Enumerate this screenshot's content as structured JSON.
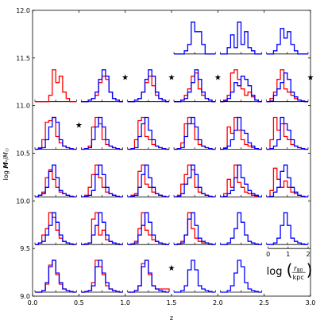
{
  "chart_data": {
    "type": "grid of step histograms",
    "xlabel": "z",
    "ylabel": "log M*/M☉",
    "xlim": [
      0.0,
      3.0
    ],
    "ylim": [
      9.0,
      12.0
    ],
    "x_ticks": [
      "0.0",
      "0.5",
      "1.0",
      "1.5",
      "2.0",
      "2.5",
      "3.0"
    ],
    "y_ticks": [
      "9.0",
      "9.5",
      "10.0",
      "10.5",
      "11.0",
      "11.5",
      "12.0"
    ],
    "series_colors": {
      "red": "#ff0000",
      "blue": "#0000ff"
    },
    "key_panel": {
      "x_ticks": [
        "0",
        "1",
        "2"
      ],
      "label_text": "log(r80/kpc)"
    },
    "panels": [
      {
        "z": [
          0.0,
          0.5
        ],
        "logM": [
          9.0,
          9.5
        ],
        "star": false,
        "red": [
          0,
          0,
          0.05,
          0.25,
          0.85,
          1.0,
          0.55,
          0.25,
          0.1,
          0.05,
          0.02,
          0
        ],
        "blue": [
          0,
          0,
          0.05,
          0.3,
          0.8,
          1.0,
          0.6,
          0.3,
          0.1,
          0.05,
          0.02,
          0
        ]
      },
      {
        "z": [
          0.5,
          1.0
        ],
        "logM": [
          9.0,
          9.5
        ],
        "star": false,
        "red": [
          0,
          0.02,
          0.05,
          0.3,
          1.0,
          0.8,
          0.55,
          0.2,
          0.1,
          0.05,
          0.02,
          0
        ],
        "blue": [
          0,
          0.02,
          0.05,
          0.2,
          0.8,
          1.0,
          0.6,
          0.3,
          0.1,
          0.05,
          0.02,
          0
        ]
      },
      {
        "z": [
          1.0,
          1.5
        ],
        "logM": [
          9.0,
          9.5
        ],
        "star": true,
        "red": [
          0,
          0,
          0.05,
          0.2,
          0.9,
          1.0,
          0.55,
          0.2,
          0.1,
          0.1,
          0.1,
          0.1
        ],
        "blue": [
          0,
          0,
          0.05,
          0.2,
          0.8,
          1.0,
          0.6,
          0.2,
          0.1,
          0.05,
          0.02,
          0
        ]
      },
      {
        "z": [
          1.5,
          2.0
        ],
        "logM": [
          9.0,
          9.5
        ],
        "star": false,
        "blue": [
          0,
          0,
          0.05,
          0.2,
          0.7,
          1.0,
          0.7,
          0.2,
          0.1,
          0.05,
          0.02,
          0
        ]
      },
      {
        "z": [
          2.0,
          2.5
        ],
        "logM": [
          9.0,
          9.5
        ],
        "star": false,
        "blue": [
          0,
          0,
          0.05,
          0.2,
          0.6,
          1.0,
          0.8,
          0.3,
          0.1,
          0.05,
          0.02,
          0
        ]
      },
      {
        "z": [
          0.0,
          0.5
        ],
        "logM": [
          9.5,
          10.0
        ],
        "star": false,
        "red": [
          0,
          0.05,
          0.3,
          0.5,
          1.0,
          0.85,
          0.45,
          0.2,
          0.1,
          0.05,
          0.02,
          0
        ],
        "blue": [
          0,
          0.05,
          0.1,
          0.3,
          0.6,
          1.0,
          0.7,
          0.3,
          0.1,
          0.05,
          0.02,
          0
        ]
      },
      {
        "z": [
          0.5,
          1.0
        ],
        "logM": [
          9.5,
          10.0
        ],
        "star": false,
        "red": [
          0,
          0.02,
          0.05,
          0.8,
          1.0,
          0.3,
          0.45,
          0.15,
          0.1,
          0.05,
          0.02,
          0
        ],
        "blue": [
          0,
          0.02,
          0.05,
          0.3,
          0.6,
          1.0,
          0.7,
          0.3,
          0.1,
          0.05,
          0.02,
          0
        ]
      },
      {
        "z": [
          1.0,
          1.5
        ],
        "logM": [
          9.5,
          10.0
        ],
        "star": false,
        "red": [
          0,
          0.02,
          0.1,
          0.5,
          1.0,
          0.45,
          0.3,
          0.15,
          0.1,
          0.05,
          0.02,
          0
        ],
        "blue": [
          0,
          0.02,
          0.05,
          0.3,
          0.6,
          1.0,
          0.7,
          0.3,
          0.1,
          0.05,
          0.02,
          0
        ]
      },
      {
        "z": [
          1.5,
          2.0
        ],
        "logM": [
          9.5,
          10.0
        ],
        "star": false,
        "red": [
          0,
          0.02,
          0.1,
          0.3,
          1.0,
          0.5,
          0.2,
          0.1,
          0.05,
          0.05,
          0.02,
          0
        ],
        "blue": [
          0,
          0.02,
          0.05,
          0.3,
          0.8,
          1.0,
          0.6,
          0.2,
          0.1,
          0.05,
          0.02,
          0
        ]
      },
      {
        "z": [
          2.0,
          2.5
        ],
        "logM": [
          9.5,
          10.0
        ],
        "star": false,
        "blue": [
          0,
          0,
          0.05,
          0.2,
          0.5,
          1.0,
          0.7,
          0.3,
          0.1,
          0.05,
          0.02,
          0
        ]
      },
      {
        "z": [
          2.5,
          3.0
        ],
        "logM": [
          9.5,
          10.0
        ],
        "star": false,
        "blue": [
          0,
          0,
          0.05,
          0.2,
          0.6,
          1.0,
          0.6,
          0.2,
          0.1,
          0.05,
          0.02,
          0
        ]
      },
      {
        "z": [
          0.0,
          0.5
        ],
        "logM": [
          10.0,
          10.5
        ],
        "star": false,
        "red": [
          0,
          0.05,
          0.15,
          0.6,
          0.85,
          0.55,
          0.3,
          0.15,
          0.1,
          0.05,
          0.02,
          0
        ],
        "blue": [
          0,
          0.05,
          0.1,
          0.3,
          0.8,
          1.0,
          0.6,
          0.2,
          0.1,
          0.05,
          0.02,
          0
        ]
      },
      {
        "z": [
          0.5,
          1.0
        ],
        "logM": [
          10.0,
          10.5
        ],
        "star": false,
        "red": [
          0,
          0.05,
          0.3,
          0.7,
          1.0,
          0.6,
          0.3,
          0.15,
          0.1,
          0.05,
          0.02,
          0
        ],
        "blue": [
          0,
          0.02,
          0.05,
          0.2,
          0.7,
          1.0,
          0.7,
          0.3,
          0.1,
          0.05,
          0.02,
          0
        ]
      },
      {
        "z": [
          1.0,
          1.5
        ],
        "logM": [
          10.0,
          10.5
        ],
        "star": false,
        "red": [
          0,
          0.05,
          0.1,
          0.8,
          1.0,
          0.4,
          0.3,
          0.15,
          0.1,
          0.05,
          0.02,
          0
        ],
        "blue": [
          0,
          0.02,
          0.05,
          0.3,
          0.7,
          1.0,
          0.6,
          0.3,
          0.1,
          0.05,
          0.02,
          0
        ]
      },
      {
        "z": [
          1.5,
          2.0
        ],
        "logM": [
          10.0,
          10.5
        ],
        "star": false,
        "red": [
          0,
          0.05,
          0.4,
          0.7,
          1.0,
          0.85,
          0.3,
          0.15,
          0.1,
          0.05,
          0.02,
          0
        ],
        "blue": [
          0,
          0.02,
          0.1,
          0.4,
          0.6,
          1.0,
          0.7,
          0.3,
          0.1,
          0.05,
          0.02,
          0
        ]
      },
      {
        "z": [
          2.0,
          2.5
        ],
        "logM": [
          10.0,
          10.5
        ],
        "star": false,
        "red": [
          0,
          0.1,
          0.55,
          0.3,
          1.0,
          0.45,
          0.3,
          0.15,
          0.1,
          0.05,
          0.02,
          0
        ],
        "blue": [
          0,
          0.02,
          0.1,
          0.2,
          0.6,
          1.0,
          0.6,
          0.4,
          0.2,
          0.1,
          0.05,
          0
        ]
      },
      {
        "z": [
          2.5,
          3.0
        ],
        "logM": [
          10.0,
          10.5
        ],
        "star": false,
        "red": [
          0,
          0.2,
          0.9,
          0.55,
          0.3,
          0.5,
          0.3,
          0.15,
          0.1,
          0.05,
          0.02,
          0
        ],
        "blue": [
          0,
          0.02,
          0.15,
          0.3,
          0.8,
          1.0,
          0.6,
          0.3,
          0.15,
          0.05,
          0.02,
          0
        ]
      },
      {
        "z": [
          0.0,
          0.5
        ],
        "logM": [
          10.5,
          11.0
        ],
        "star": true,
        "red": [
          0,
          0.05,
          0.3,
          0.85,
          0.9,
          1.0,
          0.4,
          0.2,
          0.1,
          0.05,
          0.02,
          0
        ],
        "blue": [
          0,
          0.02,
          0.05,
          0.3,
          0.7,
          1.0,
          0.85,
          0.3,
          0.1,
          0.05,
          0.02,
          0
        ]
      },
      {
        "z": [
          0.5,
          1.0
        ],
        "logM": [
          10.5,
          11.0
        ],
        "star": false,
        "red": [
          0,
          0.02,
          0.1,
          0.7,
          1.0,
          0.8,
          0.3,
          0.15,
          0.1,
          0.05,
          0.02,
          0
        ],
        "blue": [
          0,
          0.02,
          0.05,
          0.3,
          0.7,
          1.0,
          0.7,
          0.3,
          0.1,
          0.05,
          0.02,
          0
        ]
      },
      {
        "z": [
          1.0,
          1.5
        ],
        "logM": [
          10.5,
          11.0
        ],
        "star": false,
        "red": [
          0,
          0.02,
          0.3,
          0.9,
          1.0,
          0.4,
          0.3,
          0.15,
          0.1,
          0.05,
          0.02,
          0
        ],
        "blue": [
          0,
          0.02,
          0.05,
          0.4,
          0.8,
          1.0,
          0.6,
          0.3,
          0.1,
          0.05,
          0.02,
          0
        ]
      },
      {
        "z": [
          1.5,
          2.0
        ],
        "logM": [
          10.5,
          11.0
        ],
        "star": false,
        "red": [
          0,
          0.02,
          0.2,
          0.8,
          1.0,
          0.8,
          0.3,
          0.15,
          0.1,
          0.05,
          0.02,
          0
        ],
        "blue": [
          0,
          0.02,
          0.05,
          0.4,
          0.8,
          1.0,
          0.7,
          0.3,
          0.1,
          0.05,
          0.02,
          0
        ]
      },
      {
        "z": [
          2.0,
          2.5
        ],
        "logM": [
          10.5,
          11.0
        ],
        "star": false,
        "red": [
          0,
          0.05,
          0.7,
          0.5,
          1.0,
          0.6,
          0.3,
          0.15,
          0.1,
          0.05,
          0.02,
          0
        ],
        "blue": [
          0,
          0.02,
          0.1,
          0.3,
          0.6,
          1.0,
          0.6,
          0.5,
          0.2,
          0.1,
          0.02,
          0
        ]
      },
      {
        "z": [
          2.5,
          3.0
        ],
        "logM": [
          10.5,
          11.0
        ],
        "star": false,
        "red": [
          0,
          0.3,
          1.0,
          0.6,
          0.8,
          0.4,
          0.3,
          0.15,
          0.1,
          0.05,
          0.02,
          0
        ],
        "blue": [
          0,
          0.02,
          0.1,
          0.3,
          1.0,
          0.8,
          0.6,
          0.3,
          0.1,
          0.05,
          0.02,
          0
        ]
      },
      {
        "z": [
          0.0,
          0.5
        ],
        "logM": [
          11.0,
          11.5
        ],
        "star": false,
        "red": [
          0,
          0,
          0,
          0,
          0.2,
          1.0,
          0.6,
          0.8,
          0.3,
          0.1,
          0,
          0
        ]
      },
      {
        "z": [
          0.5,
          1.0
        ],
        "logM": [
          11.0,
          11.5
        ],
        "star": true,
        "red": [
          0,
          0,
          0.05,
          0.1,
          0.2,
          0.6,
          0.8,
          0.7,
          0.3,
          0.1,
          0.05,
          0
        ],
        "blue": [
          0,
          0,
          0.05,
          0.1,
          0.3,
          0.7,
          1.0,
          0.8,
          0.3,
          0.1,
          0.05,
          0
        ]
      },
      {
        "z": [
          1.0,
          1.5
        ],
        "logM": [
          11.0,
          11.5
        ],
        "star": true,
        "red": [
          0,
          0,
          0.05,
          0.1,
          0.3,
          0.6,
          0.8,
          0.5,
          0.2,
          0.1,
          0.05,
          0
        ],
        "blue": [
          0,
          0,
          0.05,
          0.1,
          0.3,
          0.7,
          1.0,
          0.8,
          0.3,
          0.1,
          0.05,
          0
        ]
      },
      {
        "z": [
          1.5,
          2.0
        ],
        "logM": [
          11.0,
          11.5
        ],
        "star": true,
        "red": [
          0,
          0,
          0.05,
          0.2,
          0.4,
          0.8,
          0.9,
          0.4,
          0.2,
          0.1,
          0.05,
          0
        ],
        "blue": [
          0,
          0,
          0.05,
          0.1,
          0.3,
          0.6,
          1.0,
          0.7,
          0.3,
          0.1,
          0.05,
          0
        ]
      },
      {
        "z": [
          2.0,
          2.5
        ],
        "logM": [
          11.0,
          11.5
        ],
        "star": false,
        "red": [
          0,
          0.05,
          0.2,
          0.9,
          1.0,
          0.7,
          0.4,
          0.2,
          0.3,
          0.15,
          0.05,
          0
        ],
        "blue": [
          0,
          0.02,
          0.1,
          0.3,
          0.6,
          0.5,
          0.8,
          0.7,
          0.5,
          0.2,
          0.05,
          0
        ]
      },
      {
        "z": [
          2.5,
          3.0
        ],
        "logM": [
          11.0,
          11.5
        ],
        "star": true,
        "red": [
          0,
          0.1,
          0.3,
          0.7,
          1.0,
          0.4,
          0.3,
          0.2,
          0.1,
          0.05,
          0.02,
          0
        ],
        "blue": [
          0,
          0.02,
          0.2,
          0.4,
          0.6,
          0.9,
          0.7,
          0.3,
          0.15,
          0.05,
          0.02,
          0
        ]
      },
      {
        "z": [
          1.5,
          2.0
        ],
        "logM": [
          11.5,
          12.0
        ],
        "star": false,
        "blue": [
          0,
          0,
          0,
          0.1,
          0.3,
          1.0,
          0.7,
          0.7,
          0.3,
          0,
          0,
          0
        ]
      },
      {
        "z": [
          2.0,
          2.5
        ],
        "logM": [
          11.5,
          12.0
        ],
        "star": false,
        "blue": [
          0,
          0,
          0.2,
          0.6,
          0.2,
          1.0,
          0.3,
          0.7,
          0.2,
          0.1,
          0,
          0
        ]
      },
      {
        "z": [
          2.5,
          3.0
        ],
        "logM": [
          11.5,
          12.0
        ],
        "star": false,
        "blue": [
          0,
          0,
          0.1,
          0.3,
          0.8,
          0.5,
          0.7,
          0.3,
          0.1,
          0,
          0,
          0
        ]
      }
    ]
  }
}
